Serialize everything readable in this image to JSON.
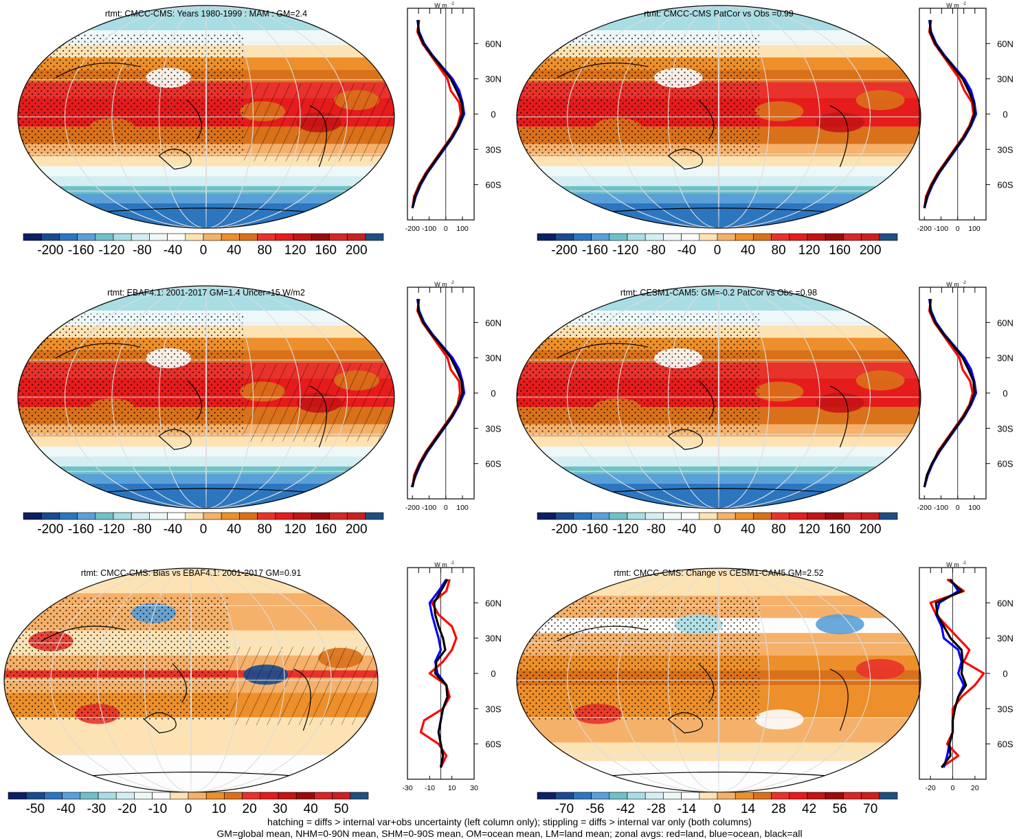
{
  "colors": {
    "cb_rtmt": [
      "#0d1f63",
      "#1a4a8f",
      "#2c76c0",
      "#5aa0d8",
      "#6fc1c7",
      "#a8dde3",
      "#d3eef2",
      "#eef8f9",
      "#fdfdfd",
      "#fde3b3",
      "#f5b16a",
      "#ed8f2a",
      "#d9711a",
      "#e8322b",
      "#e61b1b",
      "#c41414",
      "#9a0c0c",
      "#d62626",
      "#cc1f1f",
      "#1e4f80"
    ],
    "cb_diff": [
      "#0d1f63",
      "#1a4a8f",
      "#2c76c0",
      "#5aa0d8",
      "#6fc1c7",
      "#a8dde3",
      "#d3eef2",
      "#eef8f9",
      "#fdfdfd",
      "#fde3b3",
      "#f5b16a",
      "#ed8f2a",
      "#d9711a",
      "#e8322b",
      "#e61b1b",
      "#c41414",
      "#9a0c0c",
      "#d62626",
      "#cc1f1f",
      "#1e4f80"
    ],
    "land": "#ff0000",
    "ocean": "#0000ff",
    "all": "#000000"
  },
  "footer": {
    "line1": "hatching = diffs > internal var+obs uncertainty (left column only); stippling = diffs > internal var only (both columns)",
    "line2": "GM=global mean, NHM=0-90N mean, SHM=0-90S mean, OM=ocean mean, LM=land mean; zonal avgs: red=land, blue=ocean, black=all"
  },
  "chart_data": [
    {
      "type": "heatmap",
      "title": "rtmt: CMCC-CMS: Years 1980-1999 : MAM : GM=2.4",
      "field": "tropical_max",
      "stipple": true,
      "hatch": true,
      "colorbar_ticks": [
        "-200",
        "-160",
        "-120",
        "-80",
        "-40",
        "0",
        "40",
        "80",
        "120",
        "160",
        "200"
      ],
      "zonal": {
        "x_ticks": [
          "-200",
          "-100",
          "0",
          "100"
        ],
        "x_range": [
          -230,
          170
        ],
        "unit": "W m",
        "y_ticks": [
          "60N",
          "30N",
          "0",
          "30S",
          "60S"
        ],
        "lat": [
          -80,
          -70,
          -60,
          -50,
          -40,
          -30,
          -20,
          -10,
          0,
          10,
          20,
          30,
          40,
          50,
          60,
          70,
          80
        ],
        "land": [
          -200,
          -190,
          -160,
          -120,
          -70,
          -20,
          30,
          70,
          90,
          80,
          30,
          10,
          -40,
          -90,
          -140,
          -170,
          -160
        ],
        "ocean": [
          -200,
          -180,
          -150,
          -110,
          -60,
          -10,
          40,
          80,
          110,
          100,
          80,
          40,
          -20,
          -80,
          -130,
          -160,
          -170
        ],
        "all": [
          -200,
          -185,
          -155,
          -115,
          -65,
          -15,
          35,
          75,
          100,
          95,
          65,
          30,
          -25,
          -85,
          -135,
          -165,
          -165
        ]
      }
    },
    {
      "type": "heatmap",
      "title": "rtmt: CMCC-CMS PatCor vs Obs =0.99",
      "field": "tropical_max",
      "stipple": true,
      "hatch": false,
      "colorbar_ticks": [
        "-200",
        "-160",
        "-120",
        "-80",
        "-40",
        "0",
        "40",
        "80",
        "120",
        "160",
        "200"
      ],
      "zonal": {
        "x_ticks": [
          "-200",
          "-100",
          "0",
          "100"
        ],
        "x_range": [
          -230,
          170
        ],
        "unit": "W m",
        "y_ticks": [
          "60N",
          "30N",
          "0",
          "30S",
          "60S"
        ],
        "lat": [
          -80,
          -70,
          -60,
          -50,
          -40,
          -30,
          -20,
          -10,
          0,
          10,
          20,
          30,
          40,
          50,
          60,
          70,
          80
        ],
        "land": [
          -200,
          -190,
          -160,
          -120,
          -70,
          -20,
          30,
          70,
          95,
          85,
          40,
          10,
          -40,
          -90,
          -140,
          -170,
          -160
        ],
        "ocean": [
          -200,
          -180,
          -150,
          -110,
          -60,
          -10,
          40,
          80,
          110,
          100,
          80,
          40,
          -20,
          -80,
          -130,
          -160,
          -170
        ],
        "all": [
          -200,
          -185,
          -155,
          -115,
          -65,
          -15,
          35,
          75,
          100,
          95,
          65,
          30,
          -25,
          -85,
          -135,
          -165,
          -165
        ]
      }
    },
    {
      "type": "heatmap",
      "title": "rtmt: EBAF4.1: 2001-2017 GM=1.4 Uncer=15 W/m2",
      "field": "tropical_max",
      "stipple": true,
      "hatch": true,
      "colorbar_ticks": [
        "-200",
        "-160",
        "-120",
        "-80",
        "-40",
        "0",
        "40",
        "80",
        "120",
        "160",
        "200"
      ],
      "zonal": {
        "x_ticks": [
          "-200",
          "-100",
          "0",
          "100"
        ],
        "x_range": [
          -230,
          170
        ],
        "unit": "W m",
        "y_ticks": [
          "60N",
          "30N",
          "0",
          "30S",
          "60S"
        ],
        "lat": [
          -80,
          -70,
          -60,
          -50,
          -40,
          -30,
          -20,
          -10,
          0,
          10,
          20,
          30,
          40,
          50,
          60,
          70,
          80
        ],
        "land": [
          -200,
          -190,
          -160,
          -120,
          -70,
          -20,
          30,
          70,
          85,
          80,
          30,
          10,
          -40,
          -90,
          -140,
          -170,
          -160
        ],
        "ocean": [
          -205,
          -180,
          -150,
          -110,
          -60,
          -10,
          40,
          80,
          110,
          100,
          80,
          40,
          -20,
          -80,
          -130,
          -160,
          -170
        ],
        "all": [
          -200,
          -185,
          -155,
          -115,
          -65,
          -15,
          35,
          75,
          100,
          95,
          65,
          30,
          -25,
          -85,
          -135,
          -165,
          -165
        ]
      }
    },
    {
      "type": "heatmap",
      "title": "rtmt: CESM1-CAM5: GM=-0.2 PatCor vs Obs =0.98",
      "field": "tropical_max",
      "stipple": true,
      "hatch": false,
      "colorbar_ticks": [
        "-200",
        "-160",
        "-120",
        "-80",
        "-40",
        "0",
        "40",
        "80",
        "120",
        "160",
        "200"
      ],
      "zonal": {
        "x_ticks": [
          "-200",
          "-100",
          "0",
          "100"
        ],
        "x_range": [
          -230,
          170
        ],
        "unit": "W m",
        "y_ticks": [
          "60N",
          "30N",
          "0",
          "30S",
          "60S"
        ],
        "lat": [
          -80,
          -70,
          -60,
          -50,
          -40,
          -30,
          -20,
          -10,
          0,
          10,
          20,
          30,
          40,
          50,
          60,
          70,
          80
        ],
        "land": [
          -200,
          -180,
          -150,
          -120,
          -70,
          -20,
          30,
          70,
          90,
          75,
          30,
          10,
          -40,
          -90,
          -140,
          -170,
          -160
        ],
        "ocean": [
          -200,
          -180,
          -150,
          -110,
          -60,
          -10,
          40,
          80,
          110,
          100,
          80,
          40,
          -20,
          -80,
          -130,
          -160,
          -170
        ],
        "all": [
          -200,
          -185,
          -155,
          -115,
          -65,
          -15,
          35,
          75,
          100,
          95,
          65,
          30,
          -25,
          -85,
          -135,
          -165,
          -165
        ]
      }
    },
    {
      "type": "heatmap",
      "title": "rtmt: CMCC-CMS: Bias vs EBAF4.1: 2001-2017 GM=0.91",
      "field": "bias",
      "stipple": true,
      "hatch": true,
      "colorbar_ticks": [
        "-50",
        "-40",
        "-30",
        "-20",
        "-10",
        "0",
        "10",
        "20",
        "30",
        "40",
        "50"
      ],
      "zonal": {
        "x_ticks": [
          "-30",
          "-10",
          "10",
          "30"
        ],
        "x_range": [
          -30,
          30
        ],
        "unit": "W m",
        "y_ticks": [
          "60N",
          "30N",
          "0",
          "30S",
          "60S"
        ],
        "lat": [
          -80,
          -70,
          -60,
          -50,
          -40,
          -30,
          -20,
          -10,
          0,
          10,
          20,
          30,
          40,
          50,
          60,
          70,
          80
        ],
        "land": [
          0,
          5,
          -2,
          -18,
          -15,
          2,
          8,
          5,
          -10,
          2,
          10,
          14,
          10,
          -2,
          -8,
          5,
          8
        ],
        "ocean": [
          0,
          2,
          0,
          -2,
          0,
          2,
          6,
          5,
          -3,
          -5,
          0,
          -2,
          -5,
          -8,
          -10,
          -2,
          5
        ],
        "all": [
          0,
          2,
          0,
          -2,
          0,
          2,
          6,
          5,
          -5,
          -4,
          4,
          2,
          -2,
          -5,
          -6,
          0,
          6
        ]
      }
    },
    {
      "type": "heatmap",
      "title": "rtmt: CMCC-CMS: Change vs CESM1-CAM5 GM=2.52",
      "field": "change",
      "stipple": true,
      "hatch": false,
      "colorbar_ticks": [
        "-70",
        "-56",
        "-42",
        "-28",
        "-14",
        "0",
        "14",
        "28",
        "42",
        "56",
        "70"
      ],
      "zonal": {
        "x_ticks": [
          "-20",
          "0",
          "20"
        ],
        "x_range": [
          -30,
          30
        ],
        "unit": "W m",
        "y_ticks": [
          "60N",
          "30N",
          "0",
          "30S",
          "60S"
        ],
        "lat": [
          -80,
          -70,
          -60,
          -50,
          -40,
          -30,
          -20,
          -10,
          0,
          10,
          20,
          30,
          40,
          50,
          60,
          70,
          80
        ],
        "land": [
          -10,
          5,
          -5,
          0,
          0,
          0,
          8,
          20,
          28,
          10,
          15,
          5,
          -5,
          -15,
          -20,
          10,
          -5
        ],
        "ocean": [
          -8,
          -5,
          -3,
          0,
          0,
          2,
          5,
          10,
          5,
          8,
          5,
          -8,
          -10,
          -15,
          -12,
          5,
          -2
        ],
        "all": [
          -10,
          -2,
          -3,
          0,
          0,
          2,
          5,
          12,
          8,
          9,
          8,
          -2,
          -8,
          -14,
          -15,
          8,
          -3
        ]
      }
    }
  ]
}
